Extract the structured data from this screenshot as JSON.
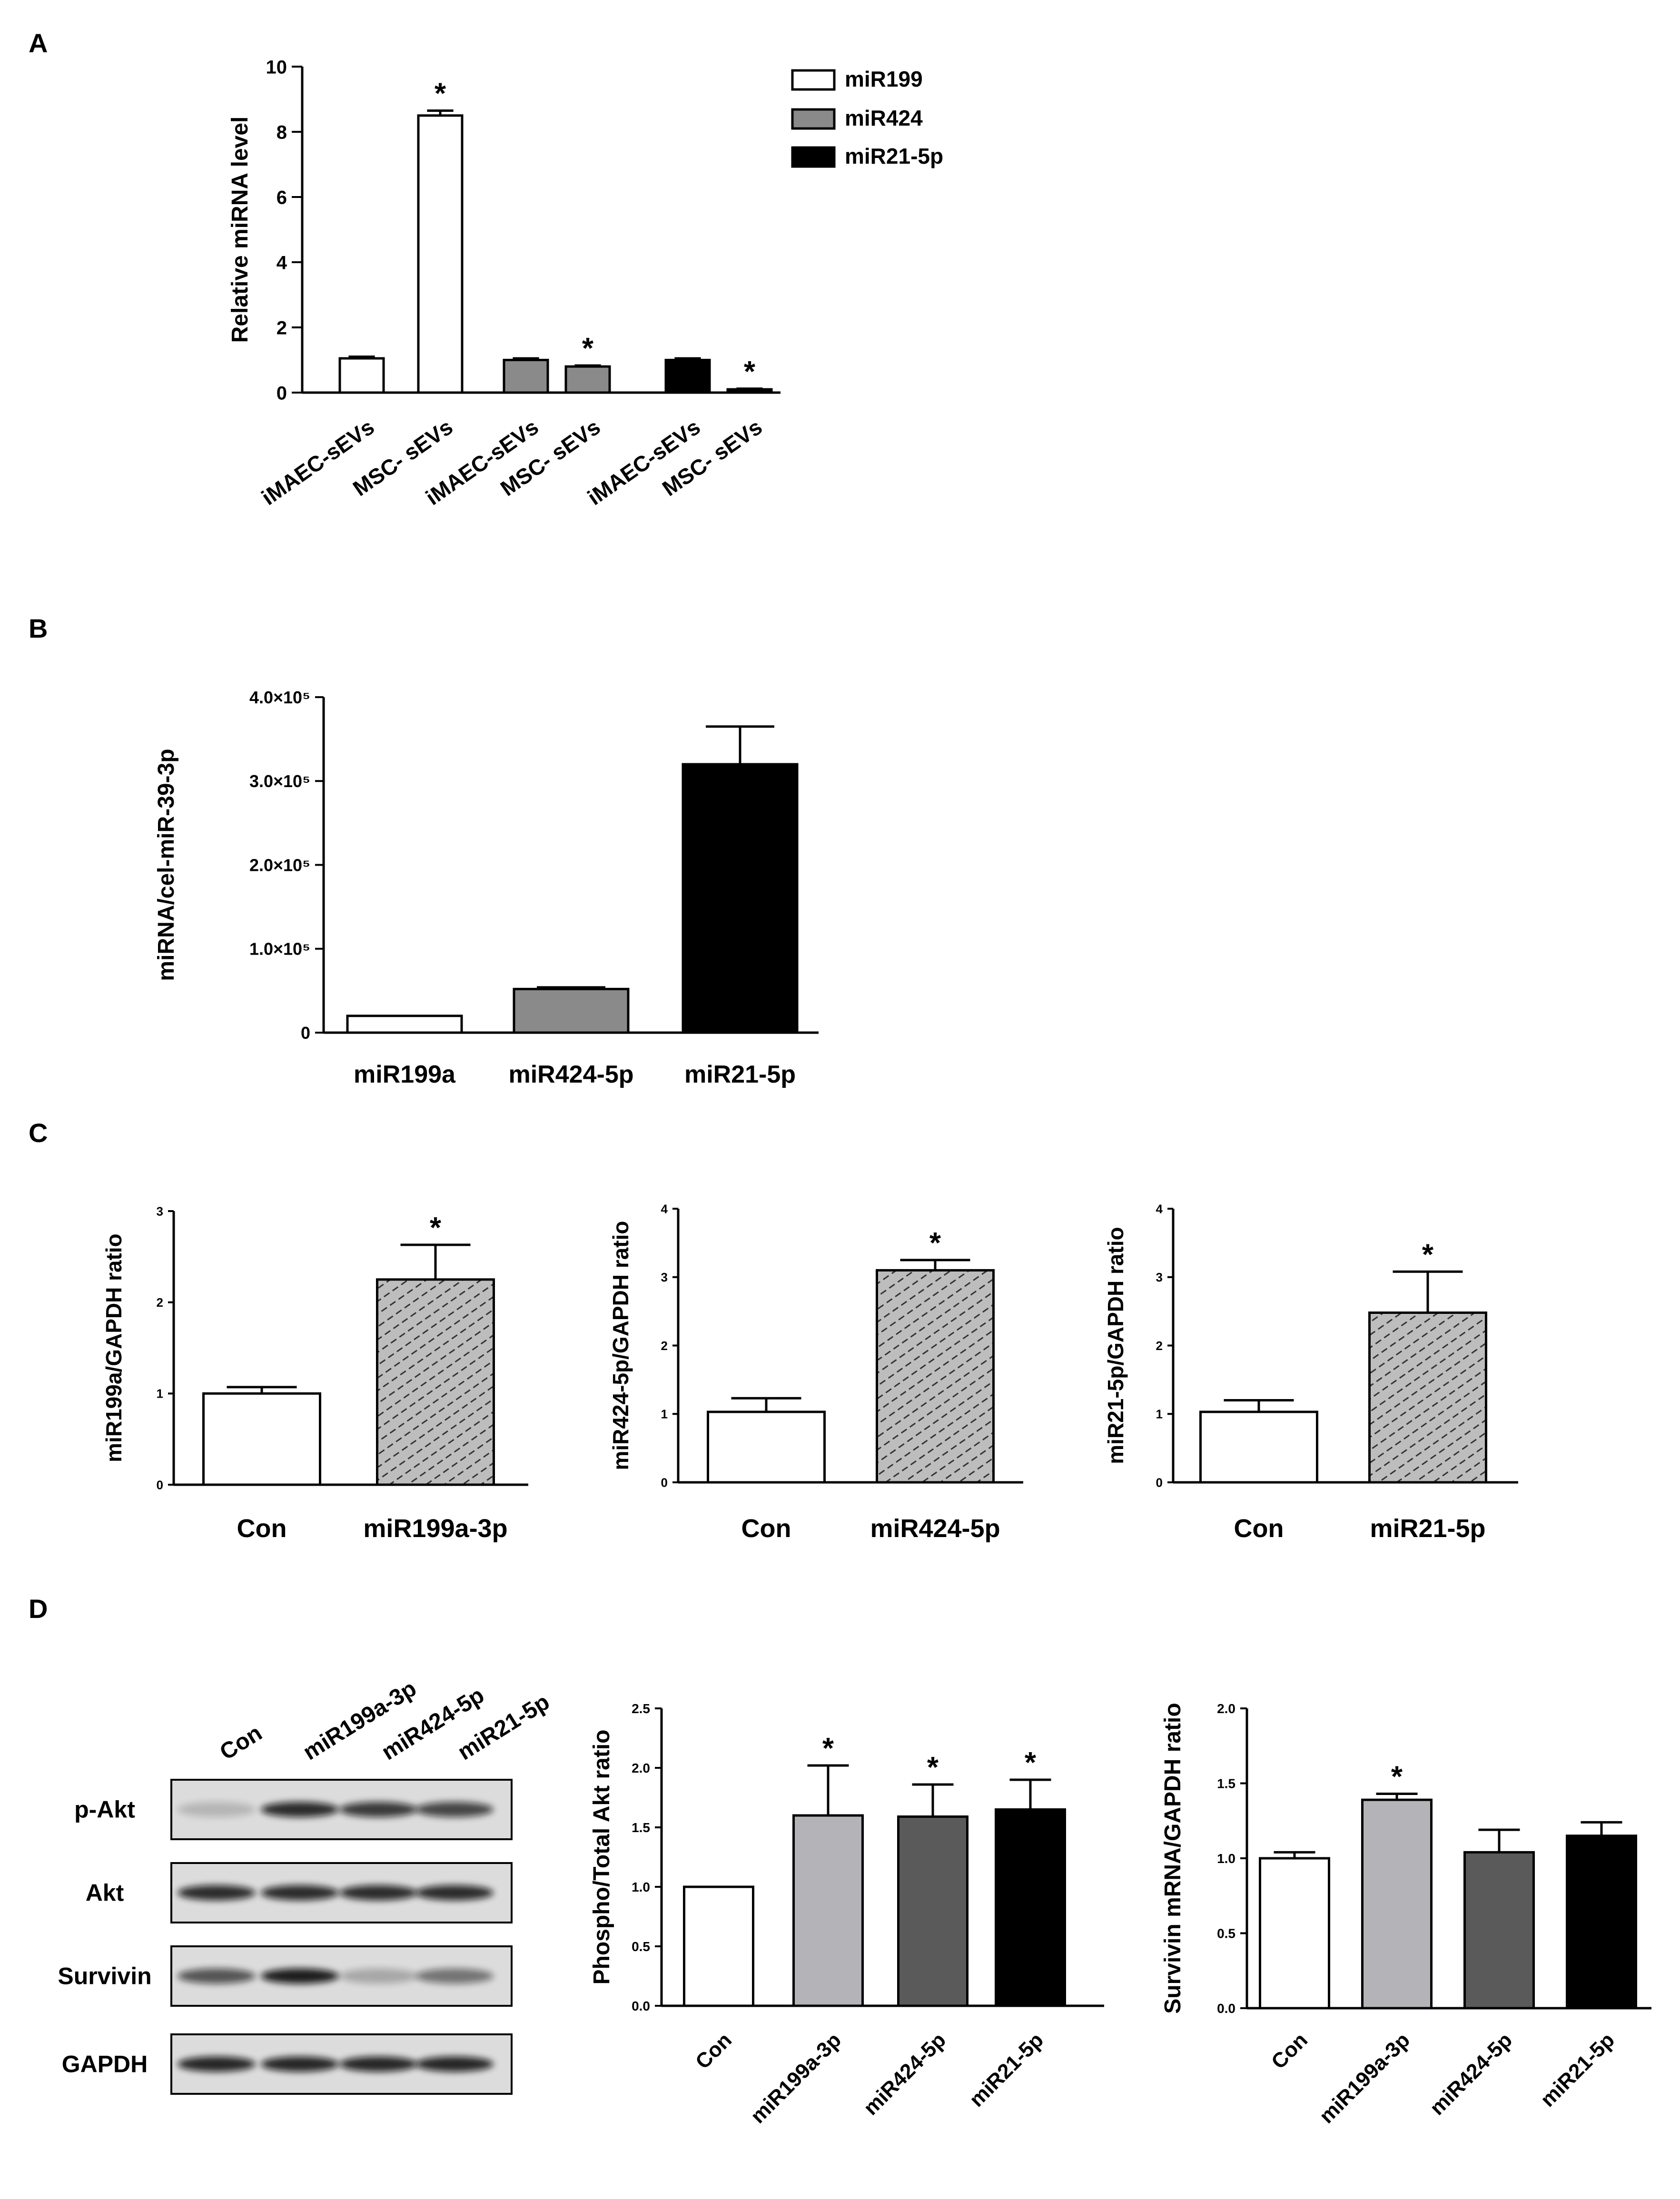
{
  "panel_labels": {
    "a": "A",
    "b": "B",
    "c": "C",
    "d": "D"
  },
  "colors": {
    "white": "#ffffff",
    "mid_gray": "#8a8a8a",
    "light_gray": "#b4b4b8",
    "dark_gray": "#5a5a5a",
    "black": "#000000",
    "hatch_fill": "#bdbdbd",
    "blot_bg": "#dcdcdc"
  },
  "significance_marker": "*",
  "chart_data": [
    {
      "id": "A",
      "type": "bar",
      "ylabel": "Relative miRNA level",
      "ylim": [
        0,
        10
      ],
      "yticks": [
        "0",
        "2",
        "4",
        "6",
        "8",
        "10"
      ],
      "categories": [
        "iMAEC-sEVs",
        "MSC- sEVs",
        "iMAEC-sEVs",
        "MSC- sEVs",
        "iMAEC-sEVs",
        "MSC- sEVs"
      ],
      "legend": [
        "miR199",
        "miR424",
        "miR21-5p"
      ],
      "legend_colors": [
        "#ffffff",
        "#8a8a8a",
        "#000000"
      ],
      "values": [
        1.05,
        8.5,
        1.0,
        0.8,
        1.0,
        0.1
      ],
      "errors": [
        0.05,
        0.15,
        0.05,
        0.03,
        0.05,
        0.02
      ],
      "colors": [
        "#ffffff",
        "#ffffff",
        "#8a8a8a",
        "#8a8a8a",
        "#000000",
        "#000000"
      ],
      "significant": [
        false,
        true,
        false,
        true,
        false,
        true
      ]
    },
    {
      "id": "B",
      "type": "bar",
      "ylabel": "miRNA/cel-miR-39-3p",
      "ylim": [
        0,
        4
      ],
      "yticks": [
        "0",
        "1.0×10⁵",
        "2.0×10⁵",
        "3.0×10⁵",
        "4.0×10⁵"
      ],
      "categories": [
        "miR199a",
        "miR424-5p",
        "miR21-5p"
      ],
      "values": [
        0.2,
        0.52,
        3.2
      ],
      "errors": [
        0.0,
        0.02,
        0.45
      ],
      "colors": [
        "#ffffff",
        "#8a8a8a",
        "#000000"
      ]
    },
    {
      "id": "C1",
      "type": "bar",
      "ylabel": "miR199a/GAPDH ratio",
      "ylim": [
        0,
        3
      ],
      "yticks": [
        "0",
        "1",
        "2",
        "3"
      ],
      "categories": [
        "Con",
        "miR199a-3p"
      ],
      "values": [
        1.0,
        2.25
      ],
      "errors": [
        0.07,
        0.38
      ],
      "colors": [
        "#ffffff",
        "hatch"
      ],
      "significant": [
        false,
        true
      ]
    },
    {
      "id": "C2",
      "type": "bar",
      "ylabel": "miR424-5p/GAPDH  ratio",
      "ylim": [
        0,
        4
      ],
      "yticks": [
        "0",
        "1",
        "2",
        "3",
        "4"
      ],
      "categories": [
        "Con",
        "miR424-5p"
      ],
      "values": [
        1.03,
        3.1
      ],
      "errors": [
        0.2,
        0.15
      ],
      "colors": [
        "#ffffff",
        "hatch"
      ],
      "significant": [
        false,
        true
      ]
    },
    {
      "id": "C3",
      "type": "bar",
      "ylabel": "miR21-5p/GAPDH  ratio",
      "ylim": [
        0,
        4
      ],
      "yticks": [
        "0",
        "1",
        "2",
        "3",
        "4"
      ],
      "categories": [
        "Con",
        "miR21-5p"
      ],
      "values": [
        1.03,
        2.48
      ],
      "errors": [
        0.17,
        0.6
      ],
      "colors": [
        "#ffffff",
        "hatch"
      ],
      "significant": [
        false,
        true
      ]
    },
    {
      "id": "D2",
      "type": "bar",
      "ylabel": "Phospho/Total Akt ratio",
      "ylim": [
        0,
        2.5
      ],
      "yticks": [
        "0.0",
        "0.5",
        "1.0",
        "1.5",
        "2.0",
        "2.5"
      ],
      "categories": [
        "Con",
        "miR199a-3p",
        "miR424-5p",
        "miR21-5p"
      ],
      "values": [
        1.0,
        1.6,
        1.59,
        1.65
      ],
      "errors": [
        0.0,
        0.42,
        0.27,
        0.25
      ],
      "colors": [
        "#ffffff",
        "#b4b4b8",
        "#5a5a5a",
        "#000000"
      ],
      "significant": [
        false,
        true,
        true,
        true
      ]
    },
    {
      "id": "D3",
      "type": "bar",
      "ylabel": "Survivin mRNA/GAPDH ratio",
      "ylim": [
        0,
        2.0
      ],
      "yticks": [
        "0.0",
        "0.5",
        "1.0",
        "1.5",
        "2.0"
      ],
      "categories": [
        "Con",
        "miR199a-3p",
        "miR424-5p",
        "miR21-5p"
      ],
      "values": [
        1.0,
        1.39,
        1.04,
        1.15
      ],
      "errors": [
        0.04,
        0.04,
        0.15,
        0.09
      ],
      "colors": [
        "#ffffff",
        "#b4b4b8",
        "#5a5a5a",
        "#000000"
      ],
      "significant": [
        false,
        true,
        false,
        false
      ]
    }
  ],
  "blot": {
    "lanes": [
      "Con",
      "miR199a-3p",
      "miR424-5p",
      "miR21-5p"
    ],
    "rows": [
      {
        "label": "p-Akt",
        "intensities": [
          0.18,
          0.85,
          0.78,
          0.72
        ]
      },
      {
        "label": "Akt",
        "intensities": [
          0.85,
          0.85,
          0.85,
          0.85
        ]
      },
      {
        "label": "Survivin",
        "intensities": [
          0.65,
          0.92,
          0.25,
          0.5
        ]
      },
      {
        "label": "GAPDH",
        "intensities": [
          0.88,
          0.88,
          0.88,
          0.88
        ]
      }
    ]
  }
}
